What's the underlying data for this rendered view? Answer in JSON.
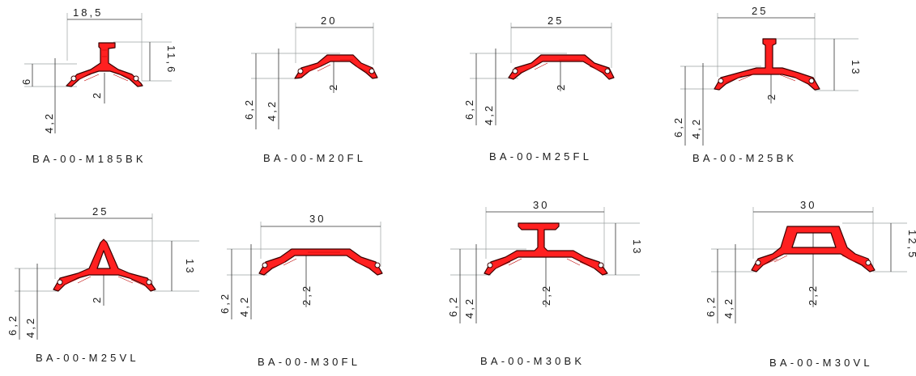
{
  "profiles": [
    {
      "name": "BA-00-M185BK",
      "width_label": "18,5",
      "dims": [
        "6",
        "4,2",
        "2",
        "11,6"
      ]
    },
    {
      "name": "BA-00-M20FL",
      "width_label": "20",
      "dims": [
        "6,2",
        "4,2",
        "2"
      ]
    },
    {
      "name": "BA-00-M25FL",
      "width_label": "25",
      "dims": [
        "6,2",
        "4,2",
        "2"
      ]
    },
    {
      "name": "BA-00-M25BK",
      "width_label": "25",
      "dims": [
        "6,2",
        "4,2",
        "2",
        "13"
      ]
    },
    {
      "name": "BA-00-M25VL",
      "width_label": "25",
      "dims": [
        "6,2",
        "4,2",
        "2",
        "13"
      ]
    },
    {
      "name": "BA-00-M30FL",
      "width_label": "30",
      "dims": [
        "6,2",
        "4,2",
        "2,2"
      ]
    },
    {
      "name": "BA-00-M30BK",
      "width_label": "30",
      "dims": [
        "6,2",
        "4,2",
        "2,2",
        "13"
      ]
    },
    {
      "name": "BA-00-M30VL",
      "width_label": "30",
      "dims": [
        "6,2",
        "4,2",
        "2,2",
        "12,5"
      ]
    }
  ]
}
